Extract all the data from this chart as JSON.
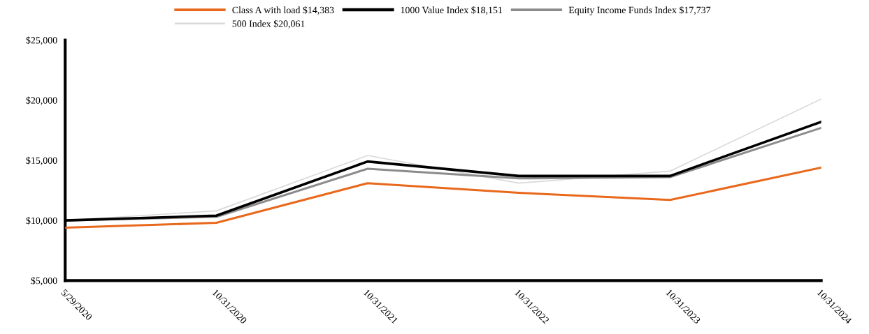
{
  "chart_data": {
    "type": "line",
    "categories": [
      "5/29/2020",
      "10/31/2020",
      "10/31/2021",
      "10/31/2022",
      "10/31/2023",
      "10/31/2024"
    ],
    "series": [
      {
        "name": "Class A with load $14,383",
        "color": "#e8681c",
        "values": [
          9400,
          9800,
          13100,
          12300,
          11700,
          14400
        ]
      },
      {
        "name": "1000 Value Index $18,151",
        "color": "#000000",
        "values": [
          10000,
          10400,
          14900,
          13700,
          13700,
          18200
        ]
      },
      {
        "name": "Equity Income Funds Index $17,737",
        "color": "#8c8c8c",
        "values": [
          10000,
          10300,
          14300,
          13500,
          13600,
          17700
        ]
      },
      {
        "name": "500 Index $20,061",
        "color": "#d9d9d9",
        "values": [
          10000,
          10800,
          15400,
          13100,
          14100,
          20100
        ]
      }
    ],
    "ylim": [
      5000,
      25000
    ],
    "yticks": [
      {
        "value": 5000,
        "label": "$5,000"
      },
      {
        "value": 10000,
        "label": "$10,000"
      },
      {
        "value": 15000,
        "label": "$15,000"
      },
      {
        "value": 20000,
        "label": "$20,000"
      },
      {
        "value": 25000,
        "label": "$25,000"
      }
    ],
    "grid": false,
    "legend": "top",
    "marker": "none",
    "line_style": "solid"
  }
}
